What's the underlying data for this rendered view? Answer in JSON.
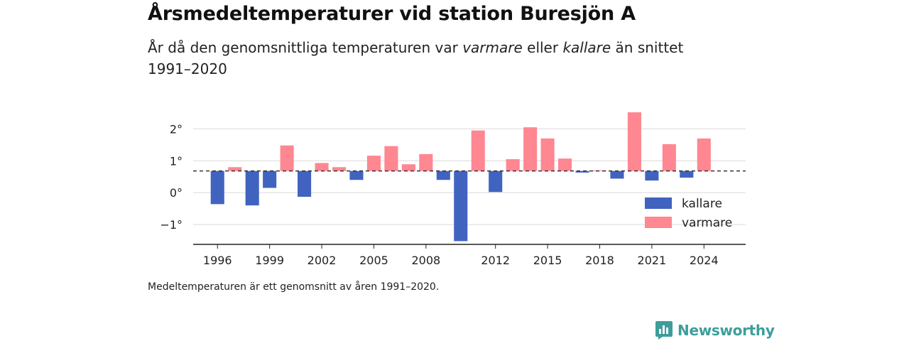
{
  "header": {
    "title": "Årsmedeltemperaturer vid station Buresjön A",
    "subtitle_prefix": "År då den genomsnittliga temperaturen var ",
    "subtitle_warm": "varmare",
    "subtitle_mid": " eller ",
    "subtitle_cold": "kallare",
    "subtitle_suffix": " än snittet 1991–2020"
  },
  "footer": {
    "caption": "Medeltemperaturen är ett genomsnitt av åren 1991–2020.",
    "brand": "Newsworthy"
  },
  "colors": {
    "colder": "#4163c0",
    "warmer": "#fe8792",
    "grid": "#d9d9d9",
    "axis": "#222222",
    "brand": "#3c9e9c"
  },
  "icons": {
    "brand_logo": "bar-chart-speech-bubble-icon"
  },
  "chart_data": {
    "type": "bar",
    "title": "Årsmedeltemperaturer vid station Buresjön A",
    "baseline": 0.68,
    "ylim": [
      -1.6,
      2.7
    ],
    "yticks": [
      2,
      1,
      0,
      -1
    ],
    "ytick_labels": [
      "2°",
      "1°",
      "0°",
      "−1°"
    ],
    "xlim": [
      1994.6,
      2026.4
    ],
    "xticks": [
      1996,
      1999,
      2002,
      2005,
      2008,
      2012,
      2015,
      2018,
      2021,
      2024
    ],
    "grid": true,
    "legend_position": "bottom-right",
    "series": [
      {
        "name": "kallare",
        "key": "colder"
      },
      {
        "name": "varmare",
        "key": "warmer"
      }
    ],
    "x": [
      1996,
      1997,
      1998,
      1999,
      2000,
      2001,
      2002,
      2003,
      2004,
      2005,
      2006,
      2007,
      2008,
      2009,
      2010,
      2011,
      2012,
      2013,
      2014,
      2015,
      2016,
      2017,
      2018,
      2019,
      2020,
      2021,
      2022,
      2023,
      2024
    ],
    "values": [
      -0.36,
      0.8,
      -0.4,
      0.15,
      1.48,
      -0.13,
      0.93,
      0.8,
      0.4,
      1.16,
      1.46,
      0.89,
      1.21,
      0.4,
      -1.52,
      1.95,
      0.02,
      1.05,
      2.05,
      1.7,
      1.07,
      0.63,
      0.7,
      0.44,
      2.52,
      0.38,
      1.52,
      0.47,
      1.7
    ]
  }
}
